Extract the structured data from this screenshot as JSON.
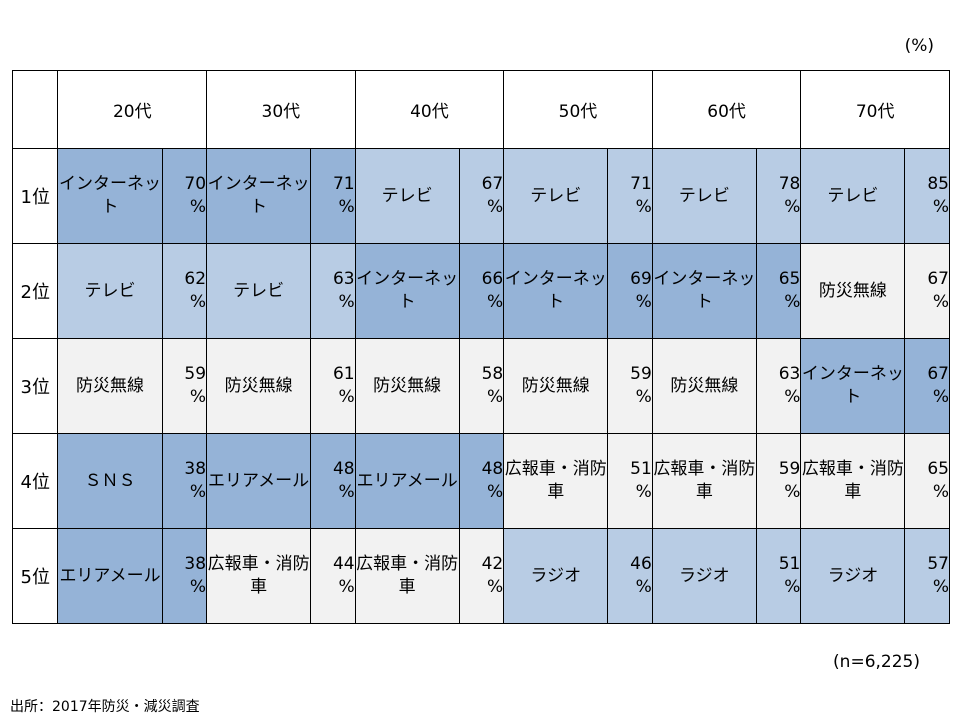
{
  "unit_label": "(%)",
  "sample_note": "(n=6,225)",
  "source": "出所：2017年防災・減災調査",
  "chart_data": {
    "type": "table",
    "unit": "%",
    "columns": [
      "20代",
      "30代",
      "40代",
      "50代",
      "60代",
      "70代"
    ],
    "ranks": [
      "1位",
      "2位",
      "3位",
      "4位",
      "5位"
    ],
    "percent_sign": "%",
    "rows": [
      [
        {
          "item": "インターネット",
          "value": 70
        },
        {
          "item": "インターネット",
          "value": 71
        },
        {
          "item": "テレビ",
          "value": 67
        },
        {
          "item": "テレビ",
          "value": 71
        },
        {
          "item": "テレビ",
          "value": 78
        },
        {
          "item": "テレビ",
          "value": 85
        }
      ],
      [
        {
          "item": "テレビ",
          "value": 62
        },
        {
          "item": "テレビ",
          "value": 63
        },
        {
          "item": "インターネット",
          "value": 66
        },
        {
          "item": "インターネット",
          "value": 69
        },
        {
          "item": "インターネット",
          "value": 65
        },
        {
          "item": "防災無線",
          "value": 67
        }
      ],
      [
        {
          "item": "防災無線",
          "value": 59
        },
        {
          "item": "防災無線",
          "value": 61
        },
        {
          "item": "防災無線",
          "value": 58
        },
        {
          "item": "防災無線",
          "value": 59
        },
        {
          "item": "防災無線",
          "value": 63
        },
        {
          "item": "インターネット",
          "value": 67
        }
      ],
      [
        {
          "item": "ＳＮＳ",
          "value": 38
        },
        {
          "item": "エリアメール",
          "value": 48
        },
        {
          "item": "エリアメール",
          "value": 48
        },
        {
          "item": "広報車・消防車",
          "value": 51
        },
        {
          "item": "広報車・消防車",
          "value": 59
        },
        {
          "item": "広報車・消防車",
          "value": 65
        }
      ],
      [
        {
          "item": "エリアメール",
          "value": 38
        },
        {
          "item": "広報車・消防車",
          "value": 44
        },
        {
          "item": "広報車・消防車",
          "value": 42
        },
        {
          "item": "ラジオ",
          "value": 46
        },
        {
          "item": "ラジオ",
          "value": 51
        },
        {
          "item": "ラジオ",
          "value": 57
        }
      ]
    ],
    "category_colors": {
      "インターネット": "#95b3d7",
      "ＳＮＳ": "#95b3d7",
      "エリアメール": "#95b3d7",
      "テレビ": "#b8cce4",
      "ラジオ": "#b8cce4",
      "防災無線": "#f2f2f2",
      "広報車・消防車": "#f2f2f2"
    }
  }
}
